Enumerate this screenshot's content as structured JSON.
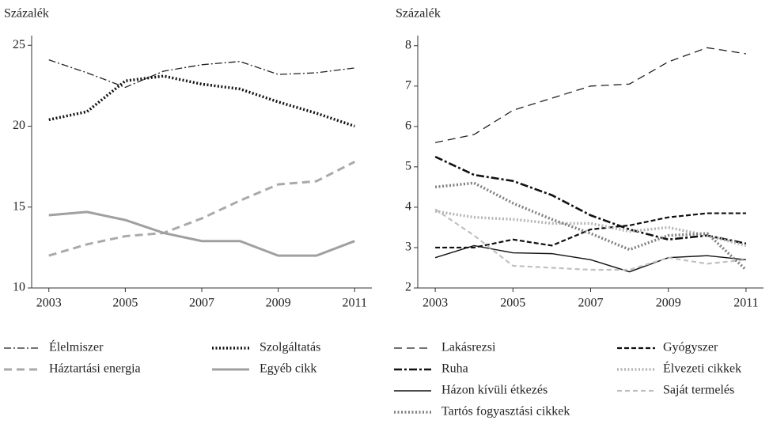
{
  "chart_data": [
    {
      "type": "line",
      "y_label": "Százalék",
      "x": [
        2003,
        2004,
        2005,
        2006,
        2007,
        2008,
        2009,
        2010,
        2011
      ],
      "xlim": [
        2002.55,
        2011.45
      ],
      "xticks": [
        2003,
        2005,
        2007,
        2009,
        2011
      ],
      "ylim": [
        10,
        25.6
      ],
      "yticks": [
        10,
        15,
        20,
        25
      ],
      "series": [
        {
          "name": "Élelmiszer",
          "color": "#222222",
          "style": "dashdot",
          "values": [
            24.1,
            23.3,
            22.4,
            23.4,
            23.8,
            24.0,
            23.2,
            23.3,
            23.6
          ]
        },
        {
          "name": "Szolgáltatás",
          "color": "#111111",
          "style": "dotted-thick",
          "values": [
            20.4,
            20.9,
            22.8,
            23.1,
            22.6,
            22.3,
            21.5,
            20.8,
            20.0
          ]
        },
        {
          "name": "Háztartási energia",
          "color": "#aaaaaa",
          "style": "dashed-thick",
          "values": [
            12.0,
            12.7,
            13.2,
            13.4,
            14.3,
            15.4,
            16.4,
            16.6,
            17.8
          ]
        },
        {
          "name": "Egyéb cikk",
          "color": "#a0a0a0",
          "style": "solid-thick",
          "values": [
            14.5,
            14.7,
            14.2,
            13.4,
            12.9,
            12.9,
            12.0,
            12.0,
            12.9
          ]
        }
      ]
    },
    {
      "type": "line",
      "y_label": "Százalék",
      "x": [
        2003,
        2004,
        2005,
        2006,
        2007,
        2008,
        2009,
        2010,
        2011
      ],
      "xlim": [
        2002.55,
        2011.45
      ],
      "xticks": [
        2003,
        2005,
        2007,
        2009,
        2011
      ],
      "ylim": [
        2,
        8.25
      ],
      "yticks": [
        2,
        3,
        4,
        5,
        6,
        7,
        8
      ],
      "series": [
        {
          "name": "Lakásrezsi",
          "color": "#222222",
          "style": "dashed",
          "values": [
            5.6,
            5.8,
            6.4,
            6.7,
            7.0,
            7.05,
            7.6,
            7.95,
            7.8
          ]
        },
        {
          "name": "Gyógyszer",
          "color": "#111111",
          "style": "dashed-short",
          "values": [
            3.0,
            3.0,
            3.2,
            3.05,
            3.45,
            3.55,
            3.75,
            3.85,
            3.85
          ]
        },
        {
          "name": "Ruha",
          "color": "#111111",
          "style": "dashdot-thick",
          "values": [
            5.25,
            4.8,
            4.65,
            4.3,
            3.8,
            3.45,
            3.2,
            3.3,
            3.1
          ]
        },
        {
          "name": "Élvezeti cikkek",
          "color": "#b5b5b5",
          "style": "dotted-thick",
          "values": [
            3.9,
            3.75,
            3.7,
            3.6,
            3.6,
            3.4,
            3.5,
            3.3,
            3.05
          ]
        },
        {
          "name": "Házon kívüli étkezés",
          "color": "#111111",
          "style": "solid",
          "values": [
            2.75,
            3.05,
            2.87,
            2.85,
            2.7,
            2.4,
            2.75,
            2.8,
            2.7
          ]
        },
        {
          "name": "Saját termelés",
          "color": "#c0c0c0",
          "style": "dashed-light",
          "values": [
            3.95,
            3.3,
            2.55,
            2.5,
            2.45,
            2.45,
            2.75,
            2.6,
            2.7
          ]
        },
        {
          "name": "Tartós fogyasztási cikkek",
          "color": "#808080",
          "style": "dotted-thick",
          "values": [
            4.5,
            4.6,
            4.1,
            3.7,
            3.35,
            2.95,
            3.3,
            3.35,
            2.45
          ]
        }
      ]
    }
  ]
}
